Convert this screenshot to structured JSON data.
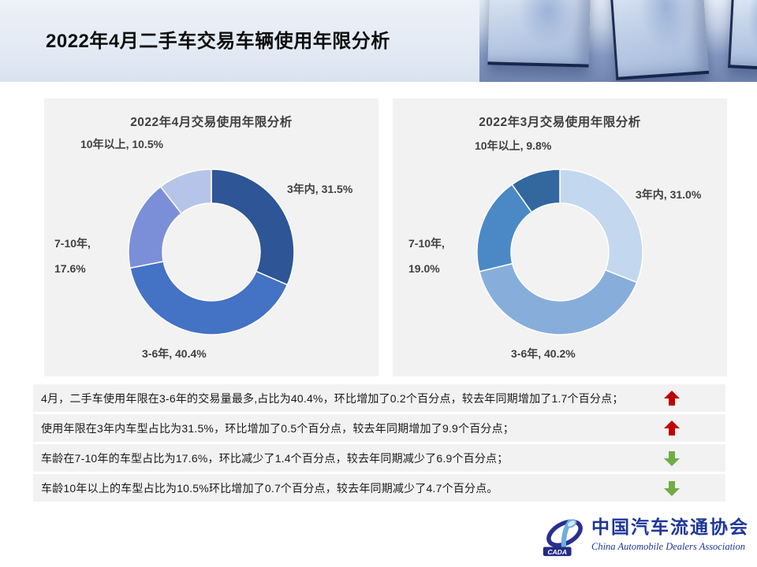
{
  "header": {
    "title": "2022年4月二手车交易车辆使用年限分析"
  },
  "panels": [
    {
      "title": "2022年4月交易使用年限分析",
      "labels": {
        "top": "10年以上, 10.5%",
        "right": "3年内, 31.5%",
        "left1": "7-10年,",
        "left2": "17.6%",
        "bottom": "3-6年, 40.4%"
      }
    },
    {
      "title": "2022年3月交易使用年限分析",
      "labels": {
        "top": "10年以上, 9.8%",
        "right": "3年内, 31.0%",
        "left1": "7-10年,",
        "left2": "19.0%",
        "bottom": "3-6年, 40.2%"
      }
    }
  ],
  "chart_data": [
    {
      "type": "pie",
      "subtype": "donut",
      "title": "2022年4月交易使用年限分析",
      "categories": [
        "3年内",
        "3-6年",
        "7-10年",
        "10年以上"
      ],
      "values": [
        31.5,
        40.4,
        17.6,
        10.5
      ],
      "unit": "%",
      "colors": [
        "#2E5596",
        "#4472C4",
        "#7B8FD8",
        "#B7C4E9"
      ],
      "start_angle": "top",
      "direction": "clockwise",
      "hole_ratio": 0.59,
      "data_labels": [
        "3年内, 31.5%",
        "3-6年, 40.4%",
        "7-10年, 17.6%",
        "10年以上, 10.5%"
      ]
    },
    {
      "type": "pie",
      "subtype": "donut",
      "title": "2022年3月交易使用年限分析",
      "categories": [
        "3年内",
        "3-6年",
        "7-10年",
        "10年以上"
      ],
      "values": [
        31.0,
        40.2,
        19.0,
        9.8
      ],
      "unit": "%",
      "colors": [
        "#C3D8EE",
        "#87AEDB",
        "#4A89C6",
        "#32689E"
      ],
      "start_angle": "top",
      "direction": "clockwise",
      "hole_ratio": 0.59,
      "data_labels": [
        "3年内, 31.0%",
        "3-6年, 40.2%",
        "7-10年, 19.0%",
        "10年以上, 9.8%"
      ]
    }
  ],
  "findings": [
    {
      "text": "4月，二手车使用年限在3-6年的交易量最多,占比为40.4%，环比增加了0.2个百分点，较去年同期增加了1.7个百分点；",
      "arrow": "up"
    },
    {
      "text": "使用年限在3年内车型占比为31.5%，环比增加了0.5个百分点，较去年同期增加了9.9个百分点；",
      "arrow": "up"
    },
    {
      "text": "车龄在7-10年的车型占比为17.6%，环比减少了1.4个百分点，较去年同期减少了6.9个百分点；",
      "arrow": "down"
    },
    {
      "text": "车龄10年以上的车型占比为10.5%环比增加了0.7个百分点，较去年同期减少了4.7个百分点。",
      "arrow": "down"
    }
  ],
  "footer": {
    "logo_acronym": "CADA",
    "logo_text_cn": "中国汽车流通协会",
    "logo_text_en": "China Automobile Dealers Association"
  },
  "colors": {
    "arrow_up": "#C00000",
    "arrow_down": "#6FAE46",
    "panel_bg": "#F2F2F2",
    "title_text": "#0d0d0d",
    "label_text": "#404040",
    "logo_blue": "#1e3799"
  }
}
